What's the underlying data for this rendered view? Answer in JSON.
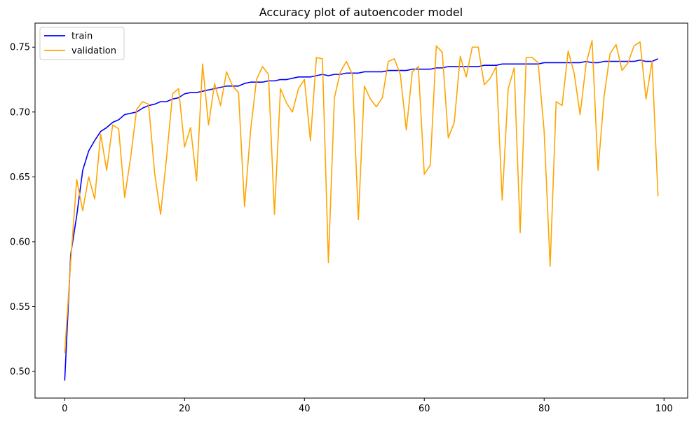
{
  "chart_data": {
    "type": "line",
    "title": "Accuracy plot of autoencoder model",
    "xlabel": "",
    "ylabel": "",
    "xlim": [
      -4.95,
      103.95
    ],
    "ylim": [
      0.4795,
      0.7685
    ],
    "xticks": [
      0,
      20,
      40,
      60,
      80,
      100
    ],
    "yticks": [
      0.5,
      0.55,
      0.6,
      0.65,
      0.7,
      0.75
    ],
    "xtick_labels": [
      "0",
      "20",
      "40",
      "60",
      "80",
      "100"
    ],
    "ytick_labels": [
      "0.50",
      "0.55",
      "0.60",
      "0.65",
      "0.70",
      "0.75"
    ],
    "grid": false,
    "legend_position": "top-left",
    "series": [
      {
        "name": "train",
        "color": "#0000ff",
        "values": [
          0.493,
          0.59,
          0.62,
          0.655,
          0.67,
          0.678,
          0.685,
          0.688,
          0.692,
          0.694,
          0.698,
          0.699,
          0.7,
          0.703,
          0.705,
          0.706,
          0.708,
          0.708,
          0.71,
          0.711,
          0.714,
          0.715,
          0.715,
          0.716,
          0.717,
          0.718,
          0.719,
          0.72,
          0.72,
          0.72,
          0.722,
          0.723,
          0.723,
          0.723,
          0.724,
          0.724,
          0.725,
          0.725,
          0.726,
          0.727,
          0.727,
          0.727,
          0.728,
          0.729,
          0.728,
          0.729,
          0.729,
          0.73,
          0.73,
          0.73,
          0.731,
          0.731,
          0.731,
          0.731,
          0.732,
          0.732,
          0.732,
          0.732,
          0.733,
          0.733,
          0.733,
          0.733,
          0.734,
          0.734,
          0.735,
          0.735,
          0.735,
          0.735,
          0.735,
          0.735,
          0.736,
          0.736,
          0.736,
          0.737,
          0.737,
          0.737,
          0.737,
          0.737,
          0.737,
          0.737,
          0.738,
          0.738,
          0.738,
          0.738,
          0.738,
          0.738,
          0.738,
          0.739,
          0.738,
          0.738,
          0.739,
          0.739,
          0.739,
          0.739,
          0.739,
          0.739,
          0.74,
          0.739,
          0.739,
          0.741
        ]
      },
      {
        "name": "validation",
        "color": "#ffa500",
        "values": [
          0.514,
          0.585,
          0.648,
          0.624,
          0.65,
          0.633,
          0.683,
          0.655,
          0.69,
          0.687,
          0.634,
          0.665,
          0.702,
          0.708,
          0.706,
          0.653,
          0.621,
          0.665,
          0.714,
          0.718,
          0.673,
          0.688,
          0.647,
          0.737,
          0.69,
          0.722,
          0.705,
          0.731,
          0.72,
          0.715,
          0.627,
          0.685,
          0.725,
          0.735,
          0.729,
          0.621,
          0.718,
          0.707,
          0.7,
          0.718,
          0.725,
          0.678,
          0.742,
          0.741,
          0.584,
          0.711,
          0.731,
          0.739,
          0.729,
          0.617,
          0.72,
          0.71,
          0.704,
          0.711,
          0.739,
          0.741,
          0.729,
          0.686,
          0.731,
          0.735,
          0.652,
          0.659,
          0.751,
          0.746,
          0.68,
          0.692,
          0.743,
          0.727,
          0.75,
          0.75,
          0.721,
          0.726,
          0.735,
          0.632,
          0.718,
          0.734,
          0.607,
          0.742,
          0.742,
          0.738,
          0.685,
          0.581,
          0.708,
          0.705,
          0.747,
          0.73,
          0.698,
          0.737,
          0.755,
          0.655,
          0.712,
          0.745,
          0.752,
          0.732,
          0.738,
          0.751,
          0.754,
          0.71,
          0.739,
          0.635
        ]
      }
    ]
  }
}
